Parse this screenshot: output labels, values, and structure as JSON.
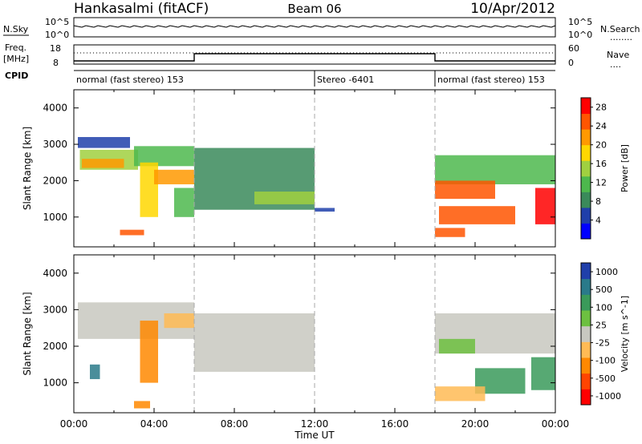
{
  "header": {
    "station": "Hankasalmi (fitACF)",
    "beam": "Beam 06",
    "date": "10/Apr/2012"
  },
  "nsky_panel": {
    "label_left": "N.Sky",
    "tick_top_left": "10^5",
    "tick_bottom_left": "10^0",
    "tick_top_right": "10^5",
    "tick_bottom_right": "10^0",
    "label_right": "N.Search",
    "legend_dots": "........"
  },
  "freq_panel": {
    "label_line1": "Freq.",
    "label_line2": "[MHz]",
    "tick_top_left": "18",
    "tick_bottom_left": "8",
    "tick_top_right": "60",
    "tick_bottom_right": "0",
    "label_right": "Nave",
    "legend_dots": "...."
  },
  "cpid": {
    "label": "CPID",
    "segments": [
      {
        "label": "normal (fast stereo) 153",
        "start_hour": 0
      },
      {
        "label": "Stereo -6401",
        "start_hour": 12
      },
      {
        "label": "normal (fast stereo) 153",
        "start_hour": 18
      }
    ]
  },
  "chart_data": [
    {
      "type": "heatmap",
      "title": "",
      "ylabel": "Slant Range [km]",
      "xlim": [
        "00:00",
        "24:00"
      ],
      "ylim": [
        180,
        4500
      ],
      "y_ticks": [
        "1000",
        "2000",
        "3000",
        "4000"
      ],
      "colorbar": {
        "label": "Power [dB]",
        "ticks": [
          "4",
          "8",
          "12",
          "16",
          "20",
          "24",
          "28"
        ],
        "range": [
          0,
          30
        ],
        "colors": [
          "#0000ff",
          "#1f3faa",
          "#3a8a5a",
          "#4db84d",
          "#a0d040",
          "#ffd700",
          "#ff9900",
          "#ff5500",
          "#ff0000"
        ]
      },
      "bands": [
        {
          "x0": 0.2,
          "x1": 2.8,
          "y0": 2900,
          "y1": 3200,
          "level": 5
        },
        {
          "x0": 0.3,
          "x1": 3.2,
          "y0": 2300,
          "y1": 2850,
          "level": 14
        },
        {
          "x0": 0.4,
          "x1": 2.5,
          "y0": 2350,
          "y1": 2600,
          "level": 22
        },
        {
          "x0": 3.0,
          "x1": 6.0,
          "y0": 2400,
          "y1": 2950,
          "level": 12
        },
        {
          "x0": 3.3,
          "x1": 4.2,
          "y0": 1000,
          "y1": 2500,
          "level": 18
        },
        {
          "x0": 4.0,
          "x1": 6.0,
          "y0": 1900,
          "y1": 2300,
          "level": 22
        },
        {
          "x0": 5.0,
          "x1": 6.0,
          "y0": 1000,
          "y1": 1800,
          "level": 10
        },
        {
          "x0": 6.0,
          "x1": 12.0,
          "y0": 1200,
          "y1": 2900,
          "level": 8
        },
        {
          "x0": 9.0,
          "x1": 12.0,
          "y0": 1350,
          "y1": 1700,
          "level": 14
        },
        {
          "x0": 2.3,
          "x1": 3.5,
          "y0": 500,
          "y1": 650,
          "level": 24
        },
        {
          "x0": 12.0,
          "x1": 13.0,
          "y0": 1150,
          "y1": 1250,
          "level": 5
        },
        {
          "x0": 18.0,
          "x1": 24.0,
          "y0": 1900,
          "y1": 2700,
          "level": 12
        },
        {
          "x0": 18.0,
          "x1": 21.0,
          "y0": 1500,
          "y1": 2000,
          "level": 24
        },
        {
          "x0": 18.2,
          "x1": 22.0,
          "y0": 800,
          "y1": 1300,
          "level": 26
        },
        {
          "x0": 18.0,
          "x1": 19.5,
          "y0": 450,
          "y1": 700,
          "level": 24
        },
        {
          "x0": 23.0,
          "x1": 24.0,
          "y0": 800,
          "y1": 1800,
          "level": 28
        }
      ]
    },
    {
      "type": "heatmap",
      "title": "",
      "xlabel": "Time UT",
      "ylabel": "Slant Range [km]",
      "xlim": [
        "00:00",
        "24:00"
      ],
      "ylim": [
        180,
        4500
      ],
      "y_ticks": [
        "1000",
        "2000",
        "3000",
        "4000"
      ],
      "x_ticks": [
        "00:00",
        "04:00",
        "08:00",
        "12:00",
        "16:00",
        "20:00",
        "00:00"
      ],
      "colorbar": {
        "label": "Velocity [m s^-1]",
        "ticks": [
          "1000",
          "500",
          "100",
          "25",
          "-25",
          "-100",
          "-500",
          "-1000"
        ],
        "range": [
          -1000,
          1000
        ],
        "colors": [
          "#ff0000",
          "#ff4400",
          "#ff8800",
          "#ffbb55",
          "#c8c8c0",
          "#6dc040",
          "#3a9a5a",
          "#2a7a8a",
          "#1f3faa"
        ]
      },
      "bands": [
        {
          "x0": 0.2,
          "x1": 6.0,
          "y0": 2200,
          "y1": 3200,
          "level": 0
        },
        {
          "x0": 6.0,
          "x1": 12.0,
          "y0": 1300,
          "y1": 2900,
          "level": 0
        },
        {
          "x0": 3.3,
          "x1": 4.2,
          "y0": 1000,
          "y1": 2700,
          "level": -400
        },
        {
          "x0": 4.5,
          "x1": 6.0,
          "y0": 2500,
          "y1": 2900,
          "level": -300
        },
        {
          "x0": 0.8,
          "x1": 1.3,
          "y0": 1100,
          "y1": 1500,
          "level": 600
        },
        {
          "x0": 18.0,
          "x1": 24.0,
          "y0": 1800,
          "y1": 2900,
          "level": 0
        },
        {
          "x0": 18.2,
          "x1": 20.0,
          "y0": 1800,
          "y1": 2200,
          "level": 300
        },
        {
          "x0": 20.0,
          "x1": 22.5,
          "y0": 700,
          "y1": 1400,
          "level": 400
        },
        {
          "x0": 18.0,
          "x1": 20.5,
          "y0": 500,
          "y1": 900,
          "level": -300
        },
        {
          "x0": 22.8,
          "x1": 24.0,
          "y0": 800,
          "y1": 1700,
          "level": 500
        },
        {
          "x0": 3.0,
          "x1": 3.8,
          "y0": 300,
          "y1": 500,
          "level": -400
        }
      ]
    }
  ]
}
